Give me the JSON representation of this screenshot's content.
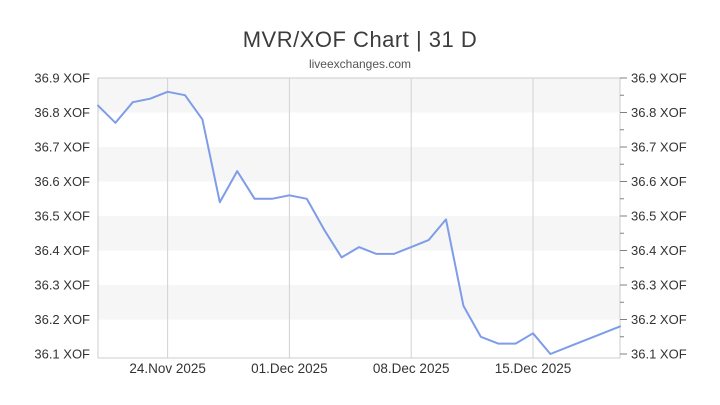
{
  "header": {
    "title": "MVR/XOF Chart | 31 D",
    "subtitle": "liveexchanges.com"
  },
  "chart_data": {
    "type": "line",
    "title": "MVR/XOF Chart | 31 D",
    "subtitle": "liveexchanges.com",
    "series": [
      {
        "name": "MVR/XOF",
        "values": [
          36.82,
          36.77,
          36.83,
          36.84,
          36.86,
          36.85,
          36.78,
          36.54,
          36.63,
          36.55,
          36.55,
          36.56,
          36.55,
          36.46,
          36.38,
          36.41,
          36.39,
          36.39,
          36.41,
          36.43,
          36.49,
          36.24,
          36.15,
          36.13,
          36.13,
          36.16,
          36.1,
          36.12,
          36.14,
          36.16,
          36.18
        ]
      }
    ],
    "x_axis": {
      "points_count": 31,
      "ticks": [
        {
          "index": 4,
          "label": "24.Nov 2025"
        },
        {
          "index": 11,
          "label": "01.Dec 2025"
        },
        {
          "index": 18,
          "label": "08.Dec 2025"
        },
        {
          "index": 25,
          "label": "15.Dec 2025"
        }
      ]
    },
    "y_axis": {
      "tick_values": [
        36.9,
        36.8,
        36.7,
        36.6,
        36.5,
        36.4,
        36.3,
        36.2,
        36.1
      ],
      "labels": [
        "36.9 XOF",
        "36.8 XOF",
        "36.7 XOF",
        "36.6 XOF",
        "36.5 XOF",
        "36.4 XOF",
        "36.3 XOF",
        "36.2 XOF",
        "36.1 XOF"
      ],
      "label_suffix": " XOF",
      "range": [
        36.9,
        36.1
      ],
      "minor_tick_step": 0.05,
      "labels_on_both_sides": true
    },
    "legend": "off",
    "grid": {
      "vertical_lines": true,
      "alternating_bands": true
    },
    "colors": {
      "line": "#7e9ce8",
      "band": "#f6f6f6",
      "gridline": "#d2d2d2",
      "border": "#cccccc",
      "tick": "#808080",
      "axis_text": "#333333",
      "title_text": "#3c3c3c",
      "subtitle_text": "#555555"
    }
  }
}
